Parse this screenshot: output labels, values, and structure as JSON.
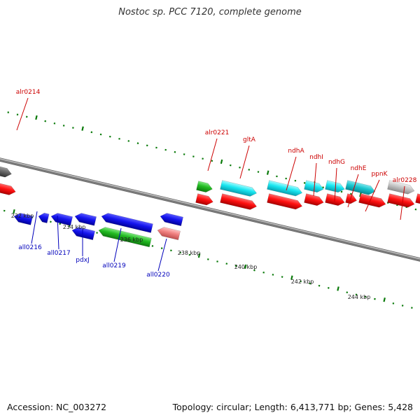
{
  "title": "Nostoc sp. PCC 7120, complete genome",
  "footer": {
    "accession": "Accession: NC_003272",
    "summary": "Topology: circular; Length: 6,413,771 bp; Genes: 5,428"
  },
  "colors": {
    "forward_label": "#cc0000",
    "reverse_label": "#0000bb",
    "backbone": "#777777",
    "tick": "#0a7a0a"
  },
  "scale_labels": [
    "232 kbp",
    "234 kbp",
    "236 kbp",
    "238 kbp",
    "240 kbp",
    "242 kbp",
    "244 kbp"
  ],
  "forward_labels": [
    "alr0214",
    "alr0221",
    "gltA",
    "ndhA",
    "ndhI",
    "ndhG",
    "ndhE",
    "ppnK",
    "alr0228"
  ],
  "reverse_labels": [
    "all0216",
    "all0217",
    "pdxJ",
    "all0219",
    "all0220"
  ]
}
